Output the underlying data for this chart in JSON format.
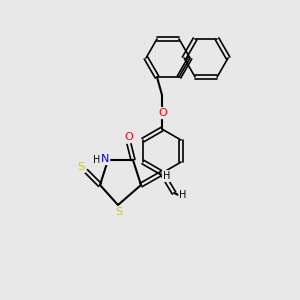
{
  "background_color": "#e8e8e8",
  "bond_color": "#000000",
  "atom_colors": {
    "O": "#ff0000",
    "N": "#0000ff",
    "S": "#cccc00",
    "H": "#000000",
    "C": "#000000"
  },
  "figsize": [
    3.0,
    3.0
  ],
  "dpi": 100
}
